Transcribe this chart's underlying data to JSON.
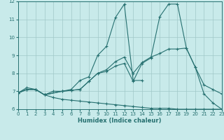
{
  "xlabel": "Humidex (Indice chaleur)",
  "xlim": [
    0,
    23
  ],
  "ylim": [
    6,
    12
  ],
  "yticks": [
    6,
    7,
    8,
    9,
    10,
    11,
    12
  ],
  "xticks": [
    0,
    1,
    2,
    3,
    4,
    5,
    6,
    7,
    8,
    9,
    10,
    11,
    12,
    13,
    14,
    15,
    16,
    17,
    18,
    19,
    20,
    21,
    22,
    23
  ],
  "bg_color": "#c8eaea",
  "line_color": "#267070",
  "grid_color": "#a0c8c8",
  "lines": [
    {
      "x": [
        0,
        1,
        2,
        3,
        4,
        5,
        6,
        7,
        8,
        9,
        10,
        11,
        12,
        13,
        14
      ],
      "y": [
        6.9,
        7.2,
        7.1,
        6.8,
        7.0,
        7.0,
        7.1,
        7.6,
        7.8,
        9.0,
        9.5,
        11.1,
        11.85,
        7.6,
        7.6
      ]
    },
    {
      "x": [
        0,
        1,
        2,
        3,
        4,
        5,
        6,
        7,
        8,
        9,
        10,
        11,
        12,
        13,
        14,
        15,
        16,
        17,
        18,
        19,
        20,
        21,
        22,
        23
      ],
      "y": [
        6.9,
        7.1,
        7.1,
        6.8,
        6.65,
        6.55,
        6.5,
        6.45,
        6.4,
        6.35,
        6.3,
        6.25,
        6.2,
        6.15,
        6.1,
        6.05,
        6.05,
        6.05,
        6.0,
        6.0,
        6.0,
        6.0,
        6.0,
        6.0
      ]
    },
    {
      "x": [
        0,
        1,
        2,
        3,
        5,
        6,
        7,
        8,
        9,
        10,
        11,
        12,
        13,
        14,
        15,
        16,
        17,
        18,
        19,
        20,
        21,
        22,
        23
      ],
      "y": [
        6.9,
        7.1,
        7.1,
        6.8,
        7.0,
        7.05,
        7.1,
        7.55,
        8.0,
        8.1,
        8.4,
        8.55,
        7.55,
        8.55,
        8.85,
        11.15,
        11.85,
        11.85,
        9.4,
        8.35,
        6.85,
        6.35,
        6.0
      ]
    },
    {
      "x": [
        0,
        1,
        2,
        3,
        5,
        6,
        7,
        8,
        9,
        10,
        11,
        12,
        13,
        14,
        15,
        16,
        17,
        18,
        19,
        20,
        21,
        22,
        23
      ],
      "y": [
        6.9,
        7.1,
        7.1,
        6.8,
        7.0,
        7.05,
        7.1,
        7.55,
        8.0,
        8.2,
        8.65,
        8.9,
        8.0,
        8.6,
        8.9,
        9.1,
        9.35,
        9.35,
        9.4,
        8.35,
        7.35,
        7.1,
        6.85
      ]
    }
  ]
}
